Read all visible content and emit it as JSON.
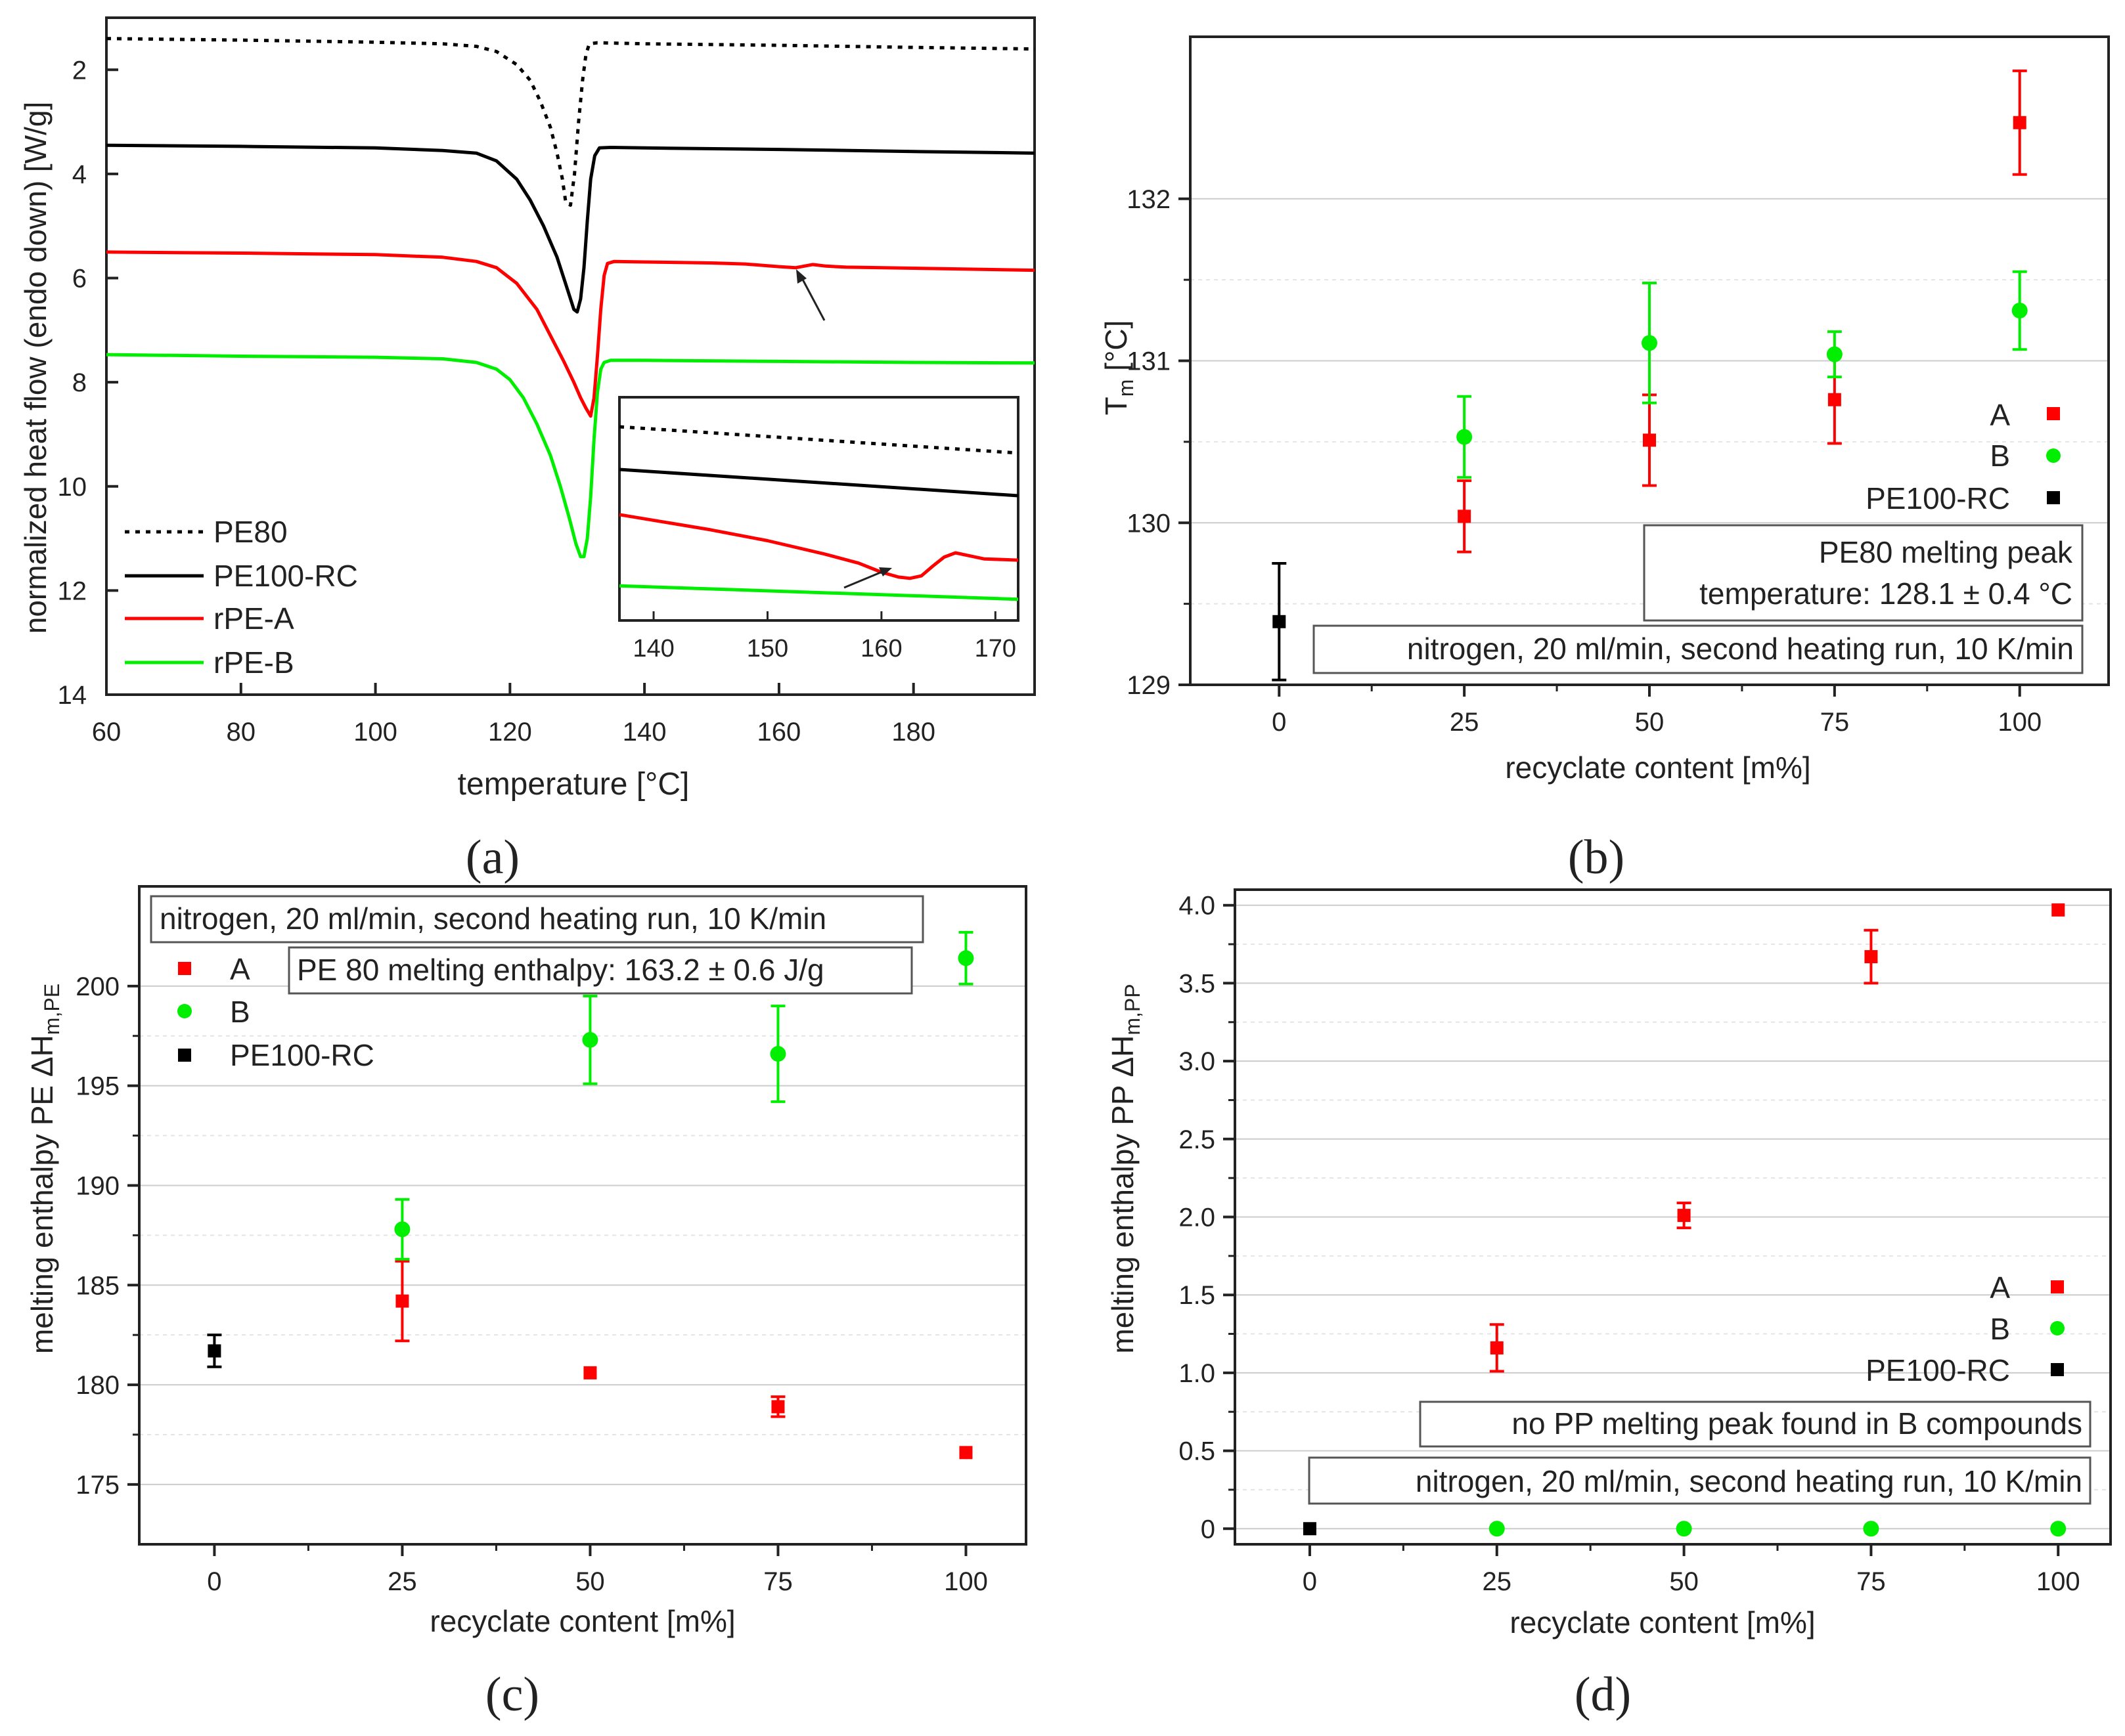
{
  "captions": [
    "(a)",
    "(b)",
    "(c)",
    "(d)"
  ],
  "colors": {
    "A": "#ff0000",
    "B": "#00ee00",
    "PE100-RC": "#000000",
    "PE80": "#000000",
    "box_border": "#555555",
    "grid": "#cccccc"
  },
  "chart_data": [
    {
      "id": "a",
      "type": "line",
      "title": "",
      "xlabel": "temperature [°C]",
      "ylabel": "normalized heat flow (endo down) [W/g]",
      "xlim": [
        60,
        198
      ],
      "ylim": [
        14,
        1
      ],
      "xticks": [
        60,
        80,
        100,
        120,
        140,
        160,
        180
      ],
      "yticks": [
        2,
        4,
        6,
        8,
        10,
        12,
        14
      ],
      "grid": false,
      "legend_position": "bottom-left",
      "series": [
        {
          "name": "PE80",
          "style": "dotted",
          "color": "#000000",
          "x": [
            60,
            80,
            100,
            110,
            115,
            118,
            121,
            123,
            124.5,
            126,
            127,
            127.8,
            128.3,
            129,
            129.6,
            130.2,
            130.8,
            131.3,
            131.8,
            133,
            140,
            160,
            180,
            198
          ],
          "y": [
            1.4,
            1.43,
            1.47,
            1.5,
            1.55,
            1.65,
            1.9,
            2.2,
            2.6,
            3.1,
            3.6,
            4.1,
            4.55,
            4.6,
            4.0,
            3.0,
            2.2,
            1.7,
            1.5,
            1.48,
            1.5,
            1.53,
            1.57,
            1.6
          ]
        },
        {
          "name": "PE100-RC",
          "style": "solid",
          "color": "#000000",
          "x": [
            60,
            80,
            100,
            110,
            115,
            118,
            121,
            123,
            125,
            127,
            128.5,
            129.5,
            130,
            130.5,
            131,
            131.5,
            132,
            132.6,
            133.3,
            135,
            140,
            160,
            180,
            198
          ],
          "y": [
            3.45,
            3.47,
            3.5,
            3.55,
            3.6,
            3.75,
            4.1,
            4.5,
            5.0,
            5.6,
            6.2,
            6.6,
            6.65,
            6.4,
            5.8,
            4.9,
            4.1,
            3.65,
            3.5,
            3.49,
            3.5,
            3.53,
            3.57,
            3.6
          ]
        },
        {
          "name": "rPE-A",
          "style": "solid",
          "color": "#ff0000",
          "x": [
            60,
            80,
            100,
            110,
            115,
            118,
            121,
            124,
            126,
            128,
            129.5,
            130.5,
            131.3,
            132,
            132.5,
            133,
            133.5,
            134,
            134.5,
            135.5,
            140,
            150,
            155,
            160,
            162.5,
            165,
            167,
            170,
            180,
            198
          ],
          "y": [
            5.5,
            5.52,
            5.55,
            5.6,
            5.68,
            5.8,
            6.1,
            6.6,
            7.1,
            7.6,
            8.0,
            8.3,
            8.5,
            8.65,
            8.3,
            7.5,
            6.6,
            5.95,
            5.72,
            5.68,
            5.69,
            5.71,
            5.73,
            5.78,
            5.8,
            5.74,
            5.77,
            5.79,
            5.81,
            5.85
          ]
        },
        {
          "name": "rPE-B",
          "style": "solid",
          "color": "#00ee00",
          "x": [
            60,
            80,
            100,
            110,
            115,
            118,
            120,
            122,
            124,
            126,
            127.5,
            128.8,
            129.8,
            130.5,
            131,
            131.5,
            132,
            132.5,
            133,
            133.5,
            134,
            135,
            140,
            160,
            180,
            198
          ],
          "y": [
            7.47,
            7.5,
            7.52,
            7.55,
            7.62,
            7.75,
            7.95,
            8.3,
            8.8,
            9.4,
            10.0,
            10.6,
            11.1,
            11.35,
            11.35,
            11.0,
            10.2,
            9.1,
            8.2,
            7.75,
            7.62,
            7.58,
            7.58,
            7.6,
            7.62,
            7.63
          ]
        }
      ],
      "inset": {
        "xlim": [
          137,
          172
        ],
        "xticks": [
          140,
          150,
          160,
          170
        ],
        "series": [
          {
            "name": "PE80",
            "x": [
              137,
              172
            ],
            "y": [
              1.49,
              1.57
            ]
          },
          {
            "name": "PE100-RC",
            "x": [
              137,
              172
            ],
            "y": [
              3.5,
              3.6
            ]
          },
          {
            "name": "rPE-A",
            "x": [
              137,
              145,
              150,
              155,
              158,
              160,
              161.5,
              162.5,
              163.5,
              164.5,
              165.5,
              166.5,
              167.5,
              169,
              172
            ],
            "y": [
              5.685,
              5.71,
              5.728,
              5.75,
              5.765,
              5.78,
              5.788,
              5.79,
              5.786,
              5.77,
              5.755,
              5.748,
              5.752,
              5.758,
              5.76
            ]
          },
          {
            "name": "rPE-B",
            "x": [
              137,
              172
            ],
            "y": [
              7.58,
              7.63
            ]
          }
        ]
      }
    },
    {
      "id": "b",
      "type": "scatter",
      "title": "",
      "xlabel": "recyclate content [m%]",
      "ylabel": "T",
      "ylabel_sub": "m",
      "ylabel_unit": " [°C]",
      "xlim": [
        -12,
        112
      ],
      "ylim": [
        129,
        133
      ],
      "xticks": [
        0,
        25,
        50,
        75,
        100
      ],
      "yticks": [
        129,
        130,
        131,
        132
      ],
      "grid": true,
      "legend_position": "right",
      "series": [
        {
          "name": "A",
          "marker": "square",
          "color": "#ff0000",
          "x": [
            25,
            50,
            75,
            100
          ],
          "y": [
            130.04,
            130.51,
            130.76,
            132.47
          ],
          "err": [
            0.22,
            0.28,
            0.27,
            0.32
          ]
        },
        {
          "name": "B",
          "marker": "circle",
          "color": "#00ee00",
          "x": [
            25,
            50,
            75,
            100
          ],
          "y": [
            130.53,
            131.11,
            131.04,
            131.31
          ],
          "err": [
            0.25,
            0.37,
            0.14,
            0.24
          ]
        },
        {
          "name": "PE100-RC",
          "marker": "square",
          "color": "#000000",
          "x": [
            0
          ],
          "y": [
            129.39
          ],
          "err": [
            0.36
          ]
        }
      ],
      "annotations": [
        "PE80 melting peak",
        "temperature: 128.1 ± 0.4 °C",
        "nitrogen, 20 ml/min, second heating run, 10 K/min"
      ]
    },
    {
      "id": "c",
      "type": "scatter",
      "title": "",
      "xlabel": "recyclate content [m%]",
      "ylabel": "melting enthalpy PE  ΔH",
      "ylabel_sub": "m,PE",
      "xlim": [
        -10,
        108
      ],
      "ylim": [
        172,
        205
      ],
      "xticks": [
        0,
        25,
        50,
        75,
        100
      ],
      "yticks": [
        175,
        180,
        185,
        190,
        195,
        200
      ],
      "grid": true,
      "legend_position": "top-left",
      "series": [
        {
          "name": "A",
          "marker": "square",
          "color": "#ff0000",
          "x": [
            25,
            50,
            75,
            100
          ],
          "y": [
            184.2,
            180.6,
            178.9,
            176.6
          ],
          "err": [
            2.0,
            0,
            0.5,
            0
          ]
        },
        {
          "name": "B",
          "marker": "circle",
          "color": "#00ee00",
          "x": [
            25,
            50,
            75,
            100
          ],
          "y": [
            187.8,
            197.3,
            196.6,
            201.4
          ],
          "err": [
            1.5,
            2.2,
            2.4,
            1.3
          ]
        },
        {
          "name": "PE100-RC",
          "marker": "square",
          "color": "#000000",
          "x": [
            0
          ],
          "y": [
            181.7
          ],
          "err": [
            0.8
          ]
        }
      ],
      "annotations": [
        "nitrogen, 20 ml/min, second heating run, 10 K/min",
        "PE 80 melting enthalpy: 163.2 ± 0.6 J/g"
      ]
    },
    {
      "id": "d",
      "type": "scatter",
      "title": "",
      "xlabel": "recyclate content [m%]",
      "ylabel": "melting enthalpy PP  ΔH",
      "ylabel_sub": "m,PP",
      "xlim": [
        -10,
        107
      ],
      "ylim": [
        -0.1,
        4.1
      ],
      "xticks": [
        0,
        25,
        50,
        75,
        100
      ],
      "yticks": [
        0,
        0.5,
        1.0,
        1.5,
        2.0,
        2.5,
        3.0,
        3.5,
        4.0
      ],
      "ytick_labels": [
        "0",
        "0.5",
        "1.0",
        "1.5",
        "2.0",
        "2.5",
        "3.0",
        "3.5",
        "4.0"
      ],
      "grid": true,
      "legend_position": "right",
      "series": [
        {
          "name": "A",
          "marker": "square",
          "color": "#ff0000",
          "x": [
            25,
            50,
            75,
            100
          ],
          "y": [
            1.16,
            2.01,
            3.67,
            3.97
          ],
          "err": [
            0.15,
            0.08,
            0.17,
            0
          ]
        },
        {
          "name": "B",
          "marker": "circle",
          "color": "#00ee00",
          "x": [
            25,
            50,
            75,
            100
          ],
          "y": [
            0,
            0,
            0,
            0
          ],
          "err": [
            0,
            0,
            0,
            0
          ]
        },
        {
          "name": "PE100-RC",
          "marker": "square",
          "color": "#000000",
          "x": [
            0
          ],
          "y": [
            0
          ],
          "err": [
            0
          ]
        }
      ],
      "annotations": [
        "no PP melting peak found in B compounds",
        "nitrogen, 20 ml/min, second heating run, 10 K/min"
      ]
    }
  ]
}
